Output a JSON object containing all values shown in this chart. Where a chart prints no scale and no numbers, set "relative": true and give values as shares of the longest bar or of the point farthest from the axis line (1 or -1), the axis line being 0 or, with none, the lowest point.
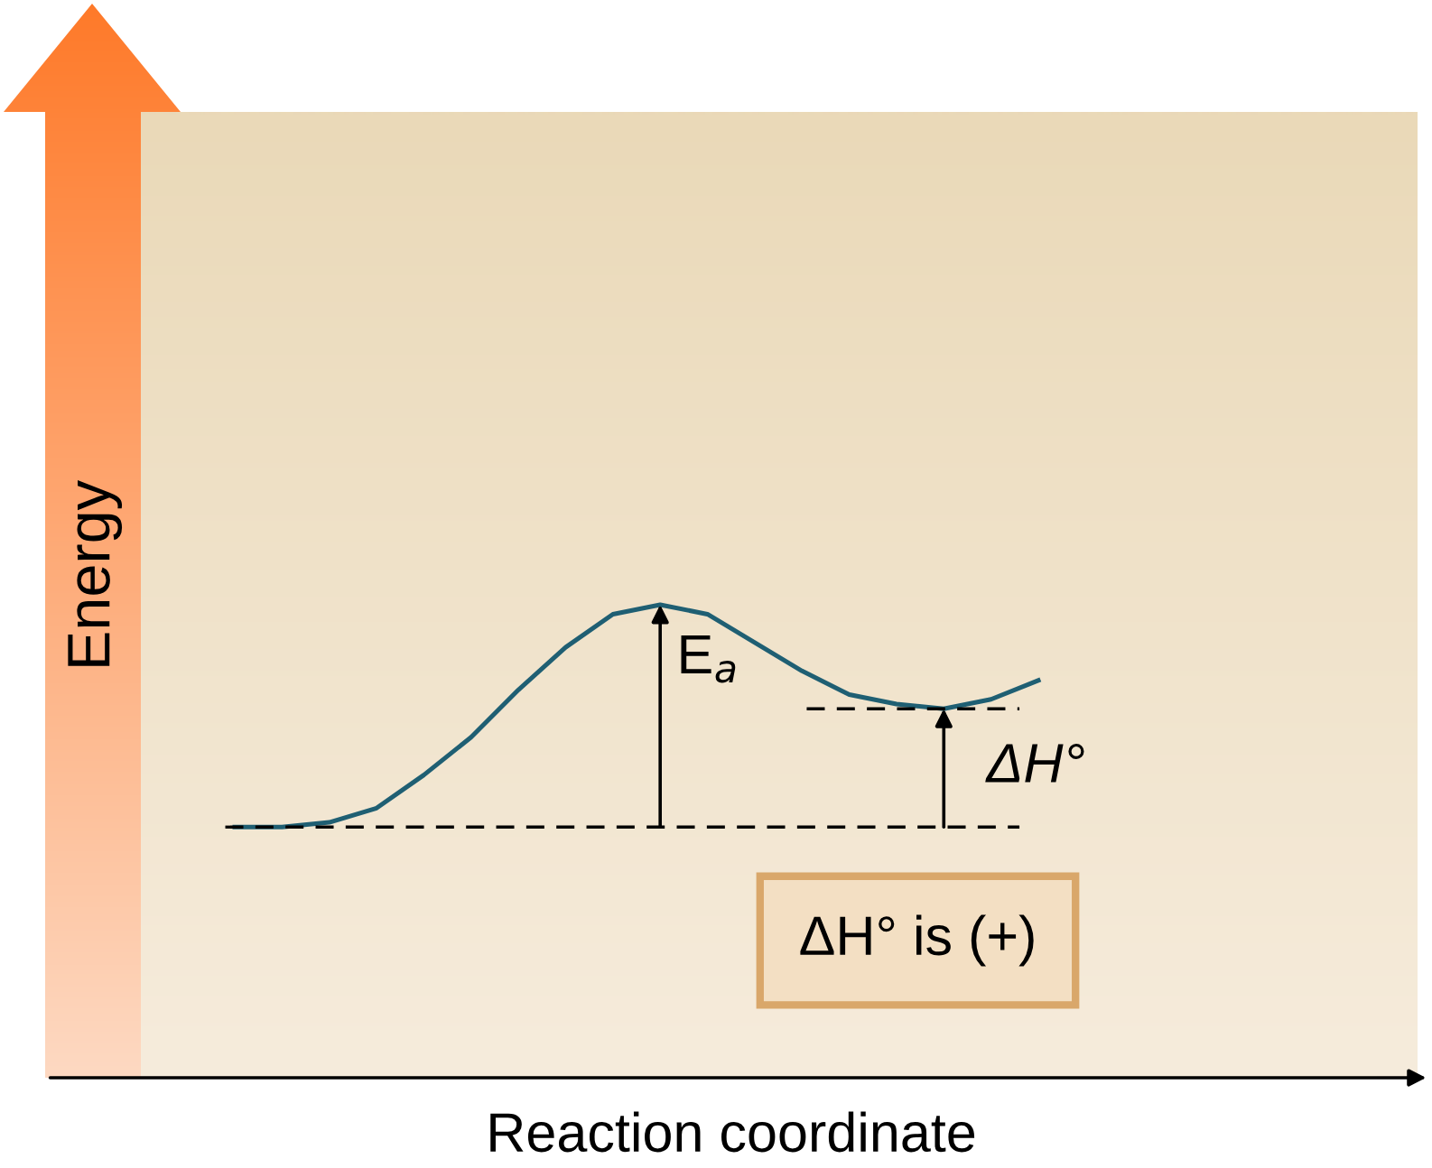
{
  "chart_data": {
    "type": "line",
    "relative": true,
    "xlabel": "Reaction coordinate",
    "ylabel": "Energy",
    "categories": [
      null,
      null,
      null,
      null,
      null,
      null,
      null,
      null,
      null,
      null,
      null,
      null,
      null,
      null,
      null,
      null,
      null,
      null
    ],
    "series": [
      {
        "color": "#1f5f73",
        "values": [
          0.53,
          0.53,
          0.54,
          0.57,
          0.64,
          0.72,
          0.82,
          0.91,
          0.98,
          1,
          0.98,
          0.92,
          0.86,
          0.81,
          0.79,
          0.78,
          0.8,
          0.84
        ]
      }
    ],
    "ref_lines": [
      {
        "axis": "y",
        "value": 0.53,
        "line_style": "dashed",
        "color": "#000000"
      },
      {
        "axis": "y",
        "value": 0.78,
        "line_style": "dashed",
        "color": "#000000"
      }
    ],
    "annotations": [
      "E$_{a}$",
      "ΔH°",
      "ΔH° is (+)"
    ],
    "marker": "none",
    "line_style": "solid"
  }
}
